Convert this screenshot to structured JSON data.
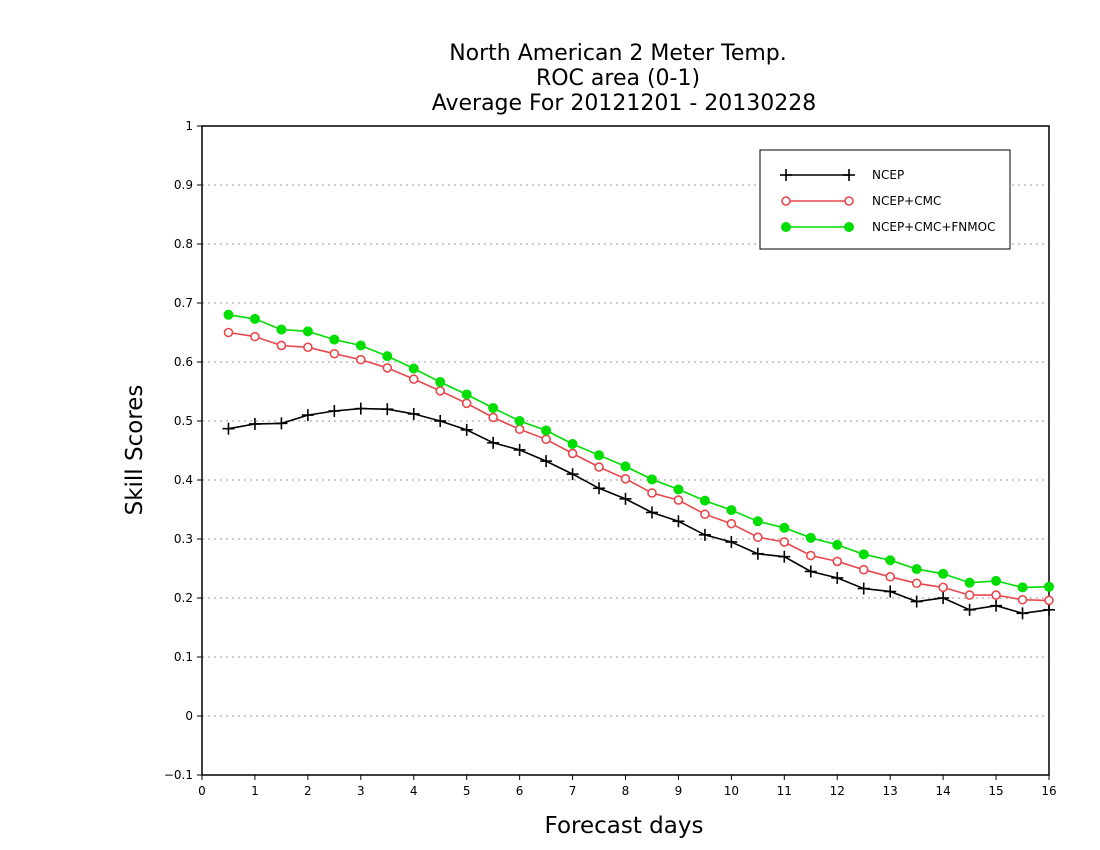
{
  "chart_data": {
    "type": "line",
    "title_lines": [
      "North American 2 Meter Temp.",
      "ROC area (0-1)",
      "Average For 20121201 - 20130228"
    ],
    "xlabel": "Forecast days",
    "ylabel": "Skill Scores",
    "xlim": [
      0,
      16
    ],
    "ylim": [
      -0.1,
      1
    ],
    "x_ticks": [
      "0",
      "1",
      "2",
      "3",
      "4",
      "5",
      "6",
      "7",
      "8",
      "9",
      "10",
      "11",
      "12",
      "13",
      "14",
      "15",
      "16"
    ],
    "y_ticks": [
      "−0.1",
      "0",
      "0.1",
      "0.2",
      "0.3",
      "0.4",
      "0.5",
      "0.6",
      "0.7",
      "0.8",
      "0.9",
      "1"
    ],
    "grid": "horizontal dotted",
    "legend_position": "top-right",
    "x": [
      0.5,
      1,
      1.5,
      2,
      2.5,
      3,
      3.5,
      4,
      4.5,
      5,
      5.5,
      6,
      6.5,
      7,
      7.5,
      8,
      8.5,
      9,
      9.5,
      10,
      10.5,
      11,
      11.5,
      12,
      12.5,
      13,
      13.5,
      14,
      14.5,
      15,
      15.5,
      16
    ],
    "series": [
      {
        "name": "NCEP",
        "color": "#000000",
        "marker": "plus",
        "values": [
          0.487,
          0.495,
          0.496,
          0.51,
          0.517,
          0.521,
          0.52,
          0.512,
          0.5,
          0.485,
          0.463,
          0.451,
          0.432,
          0.41,
          0.386,
          0.368,
          0.345,
          0.33,
          0.307,
          0.295,
          0.275,
          0.27,
          0.245,
          0.234,
          0.216,
          0.211,
          0.194,
          0.2,
          0.18,
          0.187,
          0.174,
          0.18
        ]
      },
      {
        "name": "NCEP+CMC",
        "color": "#e8474c",
        "marker": "open-circle",
        "values": [
          0.65,
          0.643,
          0.628,
          0.625,
          0.614,
          0.604,
          0.59,
          0.571,
          0.551,
          0.53,
          0.506,
          0.486,
          0.469,
          0.445,
          0.422,
          0.402,
          0.378,
          0.366,
          0.342,
          0.326,
          0.303,
          0.295,
          0.272,
          0.262,
          0.248,
          0.236,
          0.225,
          0.218,
          0.205,
          0.205,
          0.197,
          0.196
        ]
      },
      {
        "name": "NCEP+CMC+FNMOC",
        "color": "#00dd00",
        "marker": "filled-circle",
        "values": [
          0.68,
          0.673,
          0.655,
          0.652,
          0.638,
          0.628,
          0.61,
          0.589,
          0.566,
          0.545,
          0.522,
          0.5,
          0.484,
          0.461,
          0.442,
          0.423,
          0.401,
          0.384,
          0.365,
          0.349,
          0.33,
          0.319,
          0.302,
          0.29,
          0.274,
          0.264,
          0.249,
          0.241,
          0.226,
          0.229,
          0.218,
          0.219
        ]
      }
    ]
  }
}
